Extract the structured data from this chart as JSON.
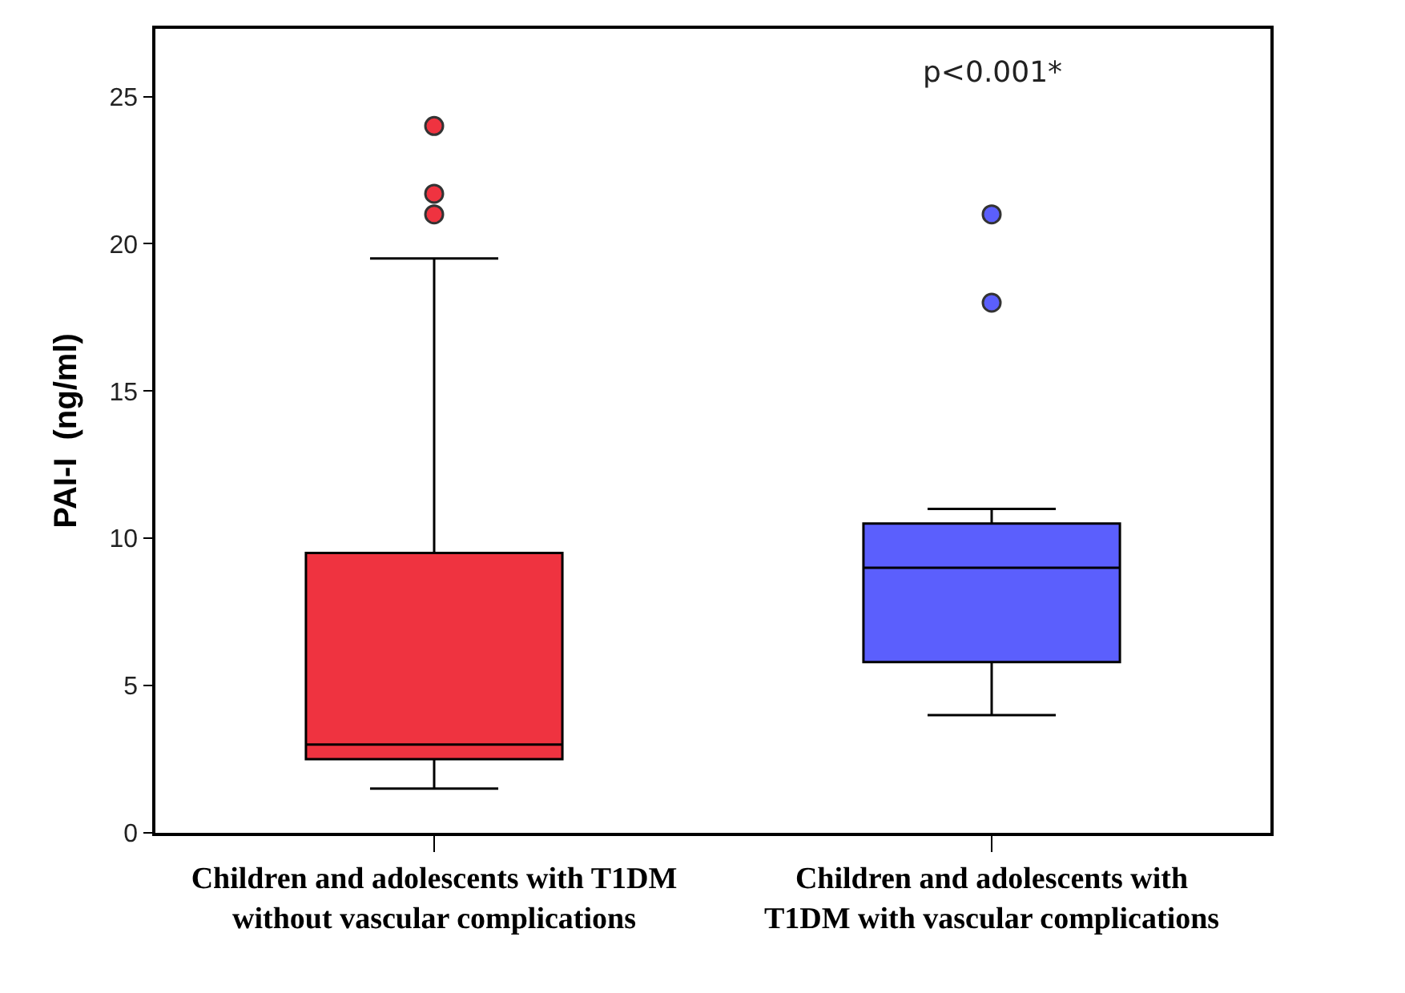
{
  "chart_data": {
    "type": "box",
    "ylabel": "PAI-I  (ng/ml)",
    "categories": [
      "Children and adolescents with T1DM\nwithout vascular complications",
      "Children and adolescents with\nT1DM with vascular complications"
    ],
    "colors": [
      "#ef3340",
      "#5b5ffd"
    ],
    "boxes": [
      {
        "low": 1.5,
        "q1": 2.5,
        "median": 3,
        "q3": 9.5,
        "high": 19.5,
        "outliers": [
          24,
          21.7,
          21
        ]
      },
      {
        "low": 4,
        "q1": 5.8,
        "median": 9,
        "q3": 10.5,
        "high": 11,
        "outliers": [
          21,
          18
        ]
      }
    ],
    "ylim": [
      0,
      27.3
    ],
    "yticks": [
      0,
      5,
      10,
      15,
      20,
      25
    ],
    "annotations": [
      "p<0.001*"
    ],
    "marker": "circle"
  }
}
